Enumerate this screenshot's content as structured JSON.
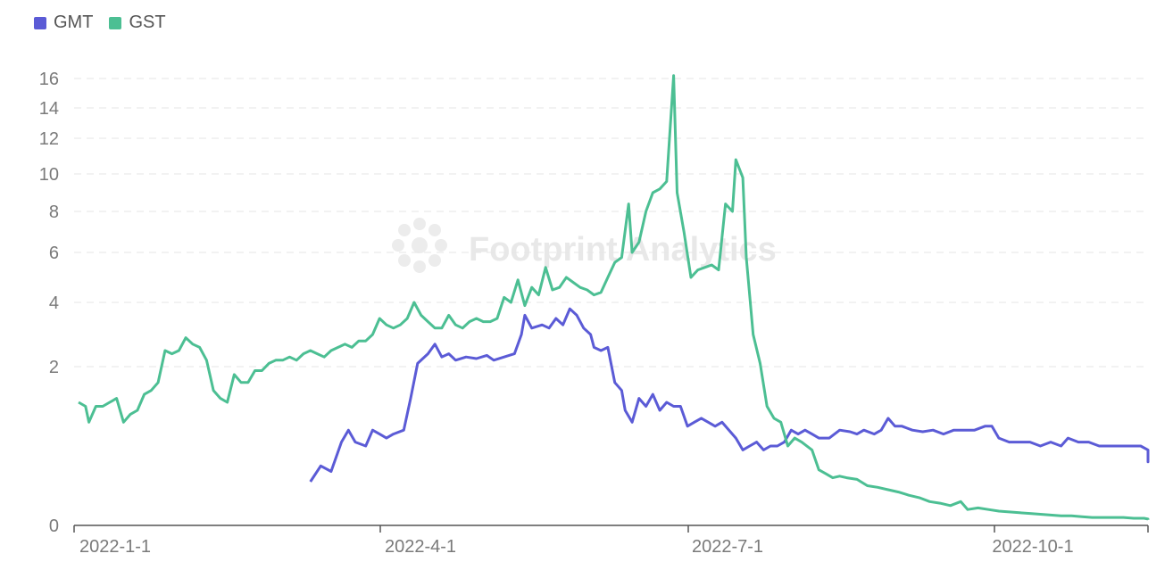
{
  "chart_data": {
    "type": "line",
    "watermark": "Footprint Analytics",
    "x_ticks": [
      "2022-1-1",
      "2022-4-1",
      "2022-7-1",
      "2022-10-1"
    ],
    "y_ticks": [
      0,
      2,
      4,
      6,
      8,
      10,
      12,
      14,
      16
    ],
    "ylim": [
      0,
      16
    ],
    "grid": true,
    "legend_position": "top-left",
    "series": [
      {
        "name": "GMT",
        "color": "#5b5bd6",
        "points": [
          [
            "2022-3-9",
            0.55
          ],
          [
            "2022-3-12",
            0.75
          ],
          [
            "2022-3-15",
            0.68
          ],
          [
            "2022-3-18",
            1.05
          ],
          [
            "2022-3-20",
            1.2
          ],
          [
            "2022-3-22",
            1.05
          ],
          [
            "2022-3-25",
            1.0
          ],
          [
            "2022-3-27",
            1.2
          ],
          [
            "2022-3-29",
            1.15
          ],
          [
            "2022-3-31",
            1.1
          ],
          [
            "2022-4-2",
            1.15
          ],
          [
            "2022-4-5",
            1.2
          ],
          [
            "2022-4-7",
            1.6
          ],
          [
            "2022-4-9",
            2.1
          ],
          [
            "2022-4-12",
            2.4
          ],
          [
            "2022-4-14",
            2.7
          ],
          [
            "2022-4-16",
            2.3
          ],
          [
            "2022-4-18",
            2.4
          ],
          [
            "2022-4-20",
            2.2
          ],
          [
            "2022-4-23",
            2.3
          ],
          [
            "2022-4-26",
            2.25
          ],
          [
            "2022-4-29",
            2.35
          ],
          [
            "2022-5-1",
            2.2
          ],
          [
            "2022-5-4",
            2.3
          ],
          [
            "2022-5-7",
            2.4
          ],
          [
            "2022-5-9",
            3.0
          ],
          [
            "2022-5-10",
            3.6
          ],
          [
            "2022-5-12",
            3.2
          ],
          [
            "2022-5-15",
            3.3
          ],
          [
            "2022-5-17",
            3.2
          ],
          [
            "2022-5-19",
            3.5
          ],
          [
            "2022-5-21",
            3.3
          ],
          [
            "2022-5-23",
            3.8
          ],
          [
            "2022-5-25",
            3.6
          ],
          [
            "2022-5-27",
            3.2
          ],
          [
            "2022-5-29",
            3.0
          ],
          [
            "2022-5-30",
            2.6
          ],
          [
            "2022-6-1",
            2.5
          ],
          [
            "2022-6-3",
            2.6
          ],
          [
            "2022-6-5",
            1.8
          ],
          [
            "2022-6-7",
            1.7
          ],
          [
            "2022-6-8",
            1.45
          ],
          [
            "2022-6-10",
            1.3
          ],
          [
            "2022-6-12",
            1.6
          ],
          [
            "2022-6-14",
            1.5
          ],
          [
            "2022-6-16",
            1.65
          ],
          [
            "2022-6-18",
            1.45
          ],
          [
            "2022-6-20",
            1.55
          ],
          [
            "2022-6-22",
            1.5
          ],
          [
            "2022-6-24",
            1.5
          ],
          [
            "2022-6-26",
            1.25
          ],
          [
            "2022-6-28",
            1.3
          ],
          [
            "2022-6-30",
            1.35
          ],
          [
            "2022-7-2",
            1.3
          ],
          [
            "2022-7-4",
            1.25
          ],
          [
            "2022-7-6",
            1.3
          ],
          [
            "2022-7-8",
            1.2
          ],
          [
            "2022-7-10",
            1.1
          ],
          [
            "2022-7-12",
            0.95
          ],
          [
            "2022-7-14",
            1.0
          ],
          [
            "2022-7-16",
            1.05
          ],
          [
            "2022-7-18",
            0.95
          ],
          [
            "2022-7-20",
            1.0
          ],
          [
            "2022-7-22",
            1.0
          ],
          [
            "2022-7-24",
            1.05
          ],
          [
            "2022-7-26",
            1.2
          ],
          [
            "2022-7-28",
            1.15
          ],
          [
            "2022-7-30",
            1.2
          ],
          [
            "2022-8-1",
            1.15
          ],
          [
            "2022-8-3",
            1.1
          ],
          [
            "2022-8-6",
            1.1
          ],
          [
            "2022-8-9",
            1.2
          ],
          [
            "2022-8-12",
            1.18
          ],
          [
            "2022-8-14",
            1.15
          ],
          [
            "2022-8-16",
            1.2
          ],
          [
            "2022-8-19",
            1.15
          ],
          [
            "2022-8-21",
            1.2
          ],
          [
            "2022-8-23",
            1.35
          ],
          [
            "2022-8-25",
            1.25
          ],
          [
            "2022-8-27",
            1.25
          ],
          [
            "2022-8-30",
            1.2
          ],
          [
            "2022-9-2",
            1.18
          ],
          [
            "2022-9-5",
            1.2
          ],
          [
            "2022-9-8",
            1.15
          ],
          [
            "2022-9-11",
            1.2
          ],
          [
            "2022-9-14",
            1.2
          ],
          [
            "2022-9-17",
            1.2
          ],
          [
            "2022-9-20",
            1.25
          ],
          [
            "2022-9-22",
            1.25
          ],
          [
            "2022-9-24",
            1.1
          ],
          [
            "2022-9-27",
            1.05
          ],
          [
            "2022-9-30",
            1.05
          ],
          [
            "2022-10-3",
            1.05
          ],
          [
            "2022-10-6",
            1.0
          ],
          [
            "2022-10-9",
            1.05
          ],
          [
            "2022-10-12",
            1.0
          ],
          [
            "2022-10-14",
            1.1
          ],
          [
            "2022-10-17",
            1.05
          ],
          [
            "2022-10-20",
            1.05
          ],
          [
            "2022-10-23",
            1.0
          ],
          [
            "2022-10-26",
            1.0
          ],
          [
            "2022-10-29",
            1.0
          ],
          [
            "2022-11-1",
            1.0
          ],
          [
            "2022-11-4",
            1.0
          ],
          [
            "2022-11-7",
            0.95
          ],
          [
            "2022-11-10",
            0.95
          ],
          [
            "2022-11-13",
            0.85
          ],
          [
            "2022-11-16",
            0.8
          ],
          [
            "2022-11-19",
            0.85
          ],
          [
            "2022-11-22",
            0.85
          ],
          [
            "2022-11-25",
            0.9
          ],
          [
            "2022-11-28",
            0.85
          ],
          [
            "2022-11-30",
            0.9
          ]
        ]
      },
      {
        "name": "GST",
        "color": "#4cbf93",
        "points": [
          [
            "2022-1-1",
            1.55
          ],
          [
            "2022-1-3",
            1.5
          ],
          [
            "2022-1-4",
            1.3
          ],
          [
            "2022-1-6",
            1.5
          ],
          [
            "2022-1-8",
            1.5
          ],
          [
            "2022-1-10",
            1.55
          ],
          [
            "2022-1-12",
            1.6
          ],
          [
            "2022-1-14",
            1.3
          ],
          [
            "2022-1-16",
            1.4
          ],
          [
            "2022-1-18",
            1.45
          ],
          [
            "2022-1-20",
            1.65
          ],
          [
            "2022-1-22",
            1.7
          ],
          [
            "2022-1-24",
            1.8
          ],
          [
            "2022-1-26",
            2.5
          ],
          [
            "2022-1-28",
            2.4
          ],
          [
            "2022-1-30",
            2.5
          ],
          [
            "2022-2-1",
            2.9
          ],
          [
            "2022-2-3",
            2.7
          ],
          [
            "2022-2-5",
            2.6
          ],
          [
            "2022-2-7",
            2.2
          ],
          [
            "2022-2-9",
            1.7
          ],
          [
            "2022-2-11",
            1.6
          ],
          [
            "2022-2-13",
            1.55
          ],
          [
            "2022-2-15",
            1.9
          ],
          [
            "2022-2-17",
            1.8
          ],
          [
            "2022-2-19",
            1.8
          ],
          [
            "2022-2-21",
            1.95
          ],
          [
            "2022-2-23",
            1.95
          ],
          [
            "2022-2-25",
            2.1
          ],
          [
            "2022-2-27",
            2.2
          ],
          [
            "2022-3-1",
            2.2
          ],
          [
            "2022-3-3",
            2.3
          ],
          [
            "2022-3-5",
            2.2
          ],
          [
            "2022-3-7",
            2.4
          ],
          [
            "2022-3-9",
            2.5
          ],
          [
            "2022-3-11",
            2.4
          ],
          [
            "2022-3-13",
            2.3
          ],
          [
            "2022-3-15",
            2.5
          ],
          [
            "2022-3-17",
            2.6
          ],
          [
            "2022-3-19",
            2.7
          ],
          [
            "2022-3-21",
            2.6
          ],
          [
            "2022-3-23",
            2.8
          ],
          [
            "2022-3-25",
            2.8
          ],
          [
            "2022-3-27",
            3.0
          ],
          [
            "2022-3-29",
            3.5
          ],
          [
            "2022-3-31",
            3.3
          ],
          [
            "2022-4-2",
            3.2
          ],
          [
            "2022-4-4",
            3.3
          ],
          [
            "2022-4-6",
            3.5
          ],
          [
            "2022-4-8",
            4.0
          ],
          [
            "2022-4-10",
            3.6
          ],
          [
            "2022-4-12",
            3.4
          ],
          [
            "2022-4-14",
            3.2
          ],
          [
            "2022-4-16",
            3.2
          ],
          [
            "2022-4-18",
            3.6
          ],
          [
            "2022-4-20",
            3.3
          ],
          [
            "2022-4-22",
            3.2
          ],
          [
            "2022-4-24",
            3.4
          ],
          [
            "2022-4-26",
            3.5
          ],
          [
            "2022-4-28",
            3.4
          ],
          [
            "2022-4-30",
            3.4
          ],
          [
            "2022-5-2",
            3.5
          ],
          [
            "2022-5-4",
            4.2
          ],
          [
            "2022-5-6",
            4.0
          ],
          [
            "2022-5-8",
            4.9
          ],
          [
            "2022-5-10",
            3.9
          ],
          [
            "2022-5-12",
            4.6
          ],
          [
            "2022-5-14",
            4.3
          ],
          [
            "2022-5-16",
            5.4
          ],
          [
            "2022-5-18",
            4.5
          ],
          [
            "2022-5-20",
            4.6
          ],
          [
            "2022-5-22",
            5.0
          ],
          [
            "2022-5-24",
            4.8
          ],
          [
            "2022-5-26",
            4.6
          ],
          [
            "2022-5-28",
            4.5
          ],
          [
            "2022-5-30",
            4.3
          ],
          [
            "2022-6-1",
            4.4
          ],
          [
            "2022-6-3",
            5.0
          ],
          [
            "2022-6-5",
            5.6
          ],
          [
            "2022-6-7",
            5.8
          ],
          [
            "2022-6-9",
            8.4
          ],
          [
            "2022-6-10",
            6.0
          ],
          [
            "2022-6-12",
            6.5
          ],
          [
            "2022-6-14",
            8.0
          ],
          [
            "2022-6-16",
            9.0
          ],
          [
            "2022-6-18",
            9.2
          ],
          [
            "2022-6-20",
            9.6
          ],
          [
            "2022-6-22",
            16.2
          ],
          [
            "2022-6-23",
            9.0
          ],
          [
            "2022-6-25",
            7.0
          ],
          [
            "2022-6-27",
            5.0
          ],
          [
            "2022-6-29",
            5.3
          ],
          [
            "2022-7-1",
            5.4
          ],
          [
            "2022-7-3",
            5.5
          ],
          [
            "2022-7-5",
            5.3
          ],
          [
            "2022-7-7",
            8.4
          ],
          [
            "2022-7-9",
            8.0
          ],
          [
            "2022-7-10",
            10.8
          ],
          [
            "2022-7-12",
            9.8
          ],
          [
            "2022-7-13",
            5.8
          ],
          [
            "2022-7-15",
            3.0
          ],
          [
            "2022-7-17",
            2.1
          ],
          [
            "2022-7-19",
            1.5
          ],
          [
            "2022-7-21",
            1.35
          ],
          [
            "2022-7-23",
            1.3
          ],
          [
            "2022-7-25",
            1.0
          ],
          [
            "2022-7-27",
            1.1
          ],
          [
            "2022-7-29",
            1.05
          ],
          [
            "2022-8-1",
            0.95
          ],
          [
            "2022-8-3",
            0.7
          ],
          [
            "2022-8-5",
            0.65
          ],
          [
            "2022-8-7",
            0.6
          ],
          [
            "2022-8-9",
            0.62
          ],
          [
            "2022-8-11",
            0.6
          ],
          [
            "2022-8-14",
            0.58
          ],
          [
            "2022-8-17",
            0.5
          ],
          [
            "2022-8-20",
            0.48
          ],
          [
            "2022-8-23",
            0.45
          ],
          [
            "2022-8-26",
            0.42
          ],
          [
            "2022-8-29",
            0.38
          ],
          [
            "2022-9-1",
            0.35
          ],
          [
            "2022-9-4",
            0.3
          ],
          [
            "2022-9-7",
            0.28
          ],
          [
            "2022-9-10",
            0.25
          ],
          [
            "2022-9-13",
            0.3
          ],
          [
            "2022-9-15",
            0.2
          ],
          [
            "2022-9-18",
            0.22
          ],
          [
            "2022-9-21",
            0.2
          ],
          [
            "2022-9-24",
            0.18
          ],
          [
            "2022-9-27",
            0.17
          ],
          [
            "2022-9-30",
            0.16
          ],
          [
            "2022-10-3",
            0.15
          ],
          [
            "2022-10-6",
            0.14
          ],
          [
            "2022-10-9",
            0.13
          ],
          [
            "2022-10-12",
            0.12
          ],
          [
            "2022-10-15",
            0.12
          ],
          [
            "2022-10-18",
            0.11
          ],
          [
            "2022-10-21",
            0.1
          ],
          [
            "2022-10-24",
            0.1
          ],
          [
            "2022-10-27",
            0.1
          ],
          [
            "2022-10-30",
            0.1
          ],
          [
            "2022-11-2",
            0.09
          ],
          [
            "2022-11-5",
            0.09
          ],
          [
            "2022-11-8",
            0.08
          ],
          [
            "2022-11-11",
            0.08
          ],
          [
            "2022-11-14",
            0.08
          ],
          [
            "2022-11-17",
            0.08
          ],
          [
            "2022-11-20",
            0.08
          ],
          [
            "2022-11-23",
            0.07
          ],
          [
            "2022-11-26",
            0.07
          ],
          [
            "2022-11-30",
            0.07
          ]
        ]
      }
    ]
  }
}
